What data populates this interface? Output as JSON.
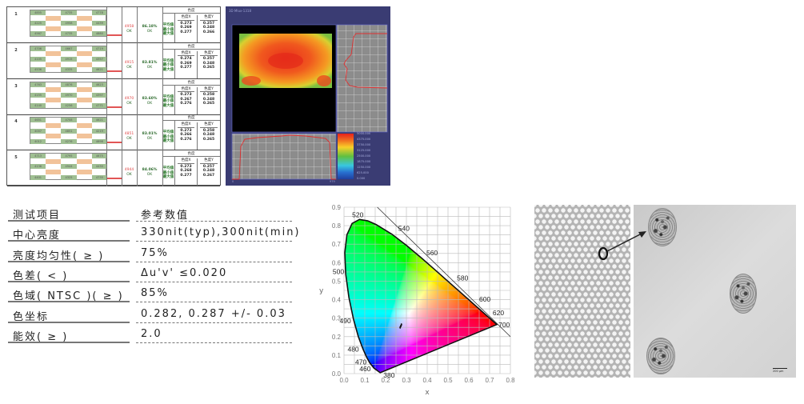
{
  "measurement_table": {
    "chroma_header": "色度",
    "x_header": "色度X",
    "y_header": "色度Y",
    "stat_labels": [
      "平均值",
      "最小值",
      "最大值"
    ],
    "rows": [
      {
        "index": "1",
        "grid": [
          "4855",
          "4735",
          "4778",
          "4225",
          "4958",
          "4439",
          "4567",
          "4735",
          "4880"
        ],
        "center": "4958",
        "center_status": "OK",
        "uniformity": "86.18%",
        "uniformity_status": "OK",
        "x": [
          "0.273",
          "0.269",
          "0.277"
        ],
        "y": [
          "0.257",
          "0.248",
          "0.266"
        ]
      },
      {
        "index": "2",
        "grid": [
          "4706",
          "4667",
          "4719",
          "4105",
          "4915",
          "4357",
          "4536",
          "4335",
          "4621"
        ],
        "center": "4915",
        "center_status": "OK",
        "uniformity": "83.81%",
        "uniformity_status": "OK",
        "x": [
          "0.274",
          "0.269",
          "0.277"
        ],
        "y": [
          "0.257",
          "0.248",
          "0.265"
        ]
      },
      {
        "index": "3",
        "grid": [
          "4763",
          "4876",
          "4623",
          "4155",
          "4970",
          "4397",
          "4140",
          "4256",
          "4771"
        ],
        "center": "4970",
        "center_status": "OK",
        "uniformity": "83.60%",
        "uniformity_status": "OK",
        "x": [
          "0.273",
          "0.267",
          "0.276"
        ],
        "y": [
          "0.258",
          "0.248",
          "0.265"
        ]
      },
      {
        "index": "4",
        "grid": [
          "4651",
          "4708",
          "4621",
          "4007",
          "4851",
          "4219",
          "4012",
          "4276",
          "4698"
        ],
        "center": "4851",
        "center_status": "OK",
        "uniformity": "83.01%",
        "uniformity_status": "OK",
        "x": [
          "0.273",
          "0.266",
          "0.276"
        ],
        "y": [
          "0.258",
          "0.248",
          "0.265"
        ]
      },
      {
        "index": "5",
        "grid": [
          "4713",
          "4795",
          "4675",
          "4136",
          "4944",
          "4430",
          "4401",
          "4325",
          "4735"
        ],
        "center": "4944",
        "center_status": "OK",
        "uniformity": "84.06%",
        "uniformity_status": "OK",
        "x": [
          "0.273",
          "0.268",
          "0.277"
        ],
        "y": [
          "0.257",
          "0.248",
          "0.267"
        ]
      }
    ]
  },
  "heatmap": {
    "title": "3D   Mlux-1318",
    "legend": [
      "5000.000",
      "4375.000",
      "3750.000",
      "3125.000",
      "2500.000",
      "1875.000",
      "1250.000",
      "625.000",
      "0.000"
    ],
    "axis_start": "0",
    "axis_end": "979",
    "colors": {
      "background": "#3a3c73",
      "profile": "#e03030"
    }
  },
  "spec_table": {
    "header": {
      "item": "测试项目",
      "value": "参考数值"
    },
    "rows": [
      {
        "item": "中心亮度",
        "value": "330nit(typ),300nit(min)"
      },
      {
        "item": "亮度均匀性( ≥ )",
        "value": "75%"
      },
      {
        "item": "色差( < )",
        "value": "Δu'v' ≤0.020"
      },
      {
        "item": "色域( NTSC )( ≥ )",
        "value": "85%"
      },
      {
        "item": "色坐标",
        "value": "0.282, 0.287 +/- 0.03"
      },
      {
        "item": "能效( ≥ )",
        "value": "2.0"
      }
    ]
  },
  "chart_data": {
    "type": "scatter",
    "title": "",
    "xlabel": "x",
    "ylabel": "y",
    "xlim": [
      0,
      0.8
    ],
    "ylim": [
      0,
      0.9
    ],
    "xticks": [
      "0.0",
      "0.1",
      "0.2",
      "0.3",
      "0.4",
      "0.5",
      "0.6",
      "0.7",
      "0.8"
    ],
    "yticks": [
      "0.0",
      "0.1",
      "0.2",
      "0.3",
      "0.4",
      "0.5",
      "0.6",
      "0.7",
      "0.8",
      "0.9"
    ],
    "grid": true,
    "wavelength_labels": [
      {
        "nm": "380",
        "x": 0.174,
        "y": 0.005
      },
      {
        "nm": "460",
        "x": 0.144,
        "y": 0.03
      },
      {
        "nm": "470",
        "x": 0.124,
        "y": 0.058
      },
      {
        "nm": "480",
        "x": 0.091,
        "y": 0.133
      },
      {
        "nm": "490",
        "x": 0.045,
        "y": 0.295
      },
      {
        "nm": "500",
        "x": 0.008,
        "y": 0.538
      },
      {
        "nm": "520",
        "x": 0.074,
        "y": 0.834
      },
      {
        "nm": "540",
        "x": 0.23,
        "y": 0.754
      },
      {
        "nm": "560",
        "x": 0.373,
        "y": 0.624
      },
      {
        "nm": "580",
        "x": 0.512,
        "y": 0.487
      },
      {
        "nm": "600",
        "x": 0.627,
        "y": 0.373
      },
      {
        "nm": "620",
        "x": 0.692,
        "y": 0.308
      },
      {
        "nm": "700",
        "x": 0.735,
        "y": 0.265
      }
    ],
    "measured_points": [
      {
        "x": 0.273,
        "y": 0.257
      },
      {
        "x": 0.27,
        "y": 0.25
      },
      {
        "x": 0.276,
        "y": 0.265
      }
    ]
  },
  "microscope": {
    "scale_label": "200 μm"
  }
}
